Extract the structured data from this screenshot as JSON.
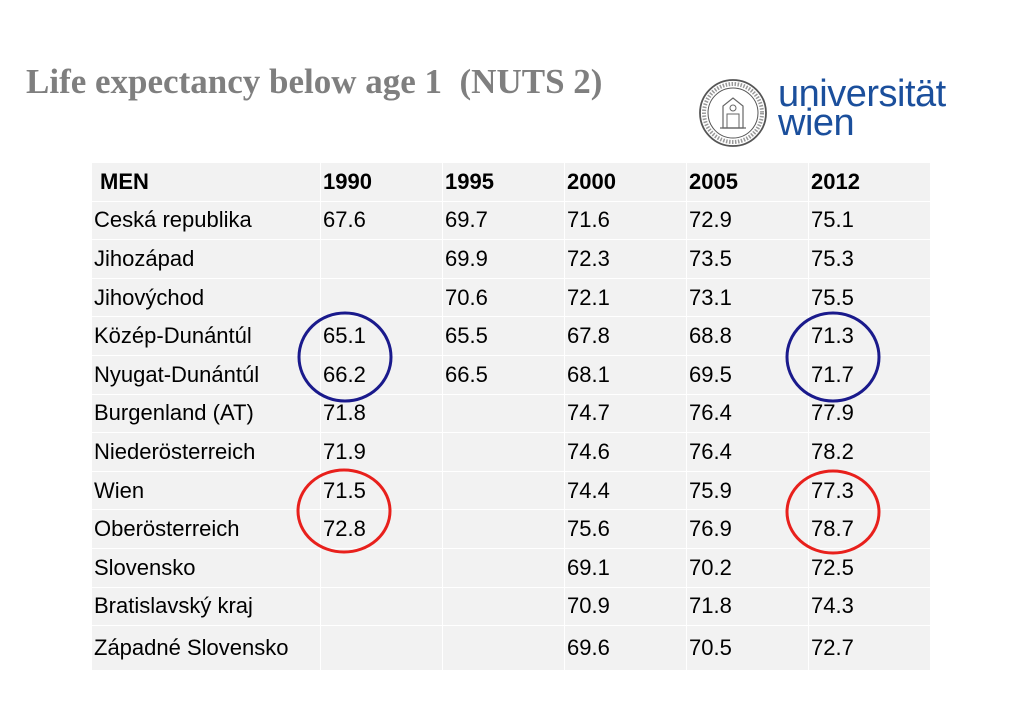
{
  "slide": {
    "title": "Life expectancy below age 1  (NUTS 2)"
  },
  "logo": {
    "line1": "universität",
    "line2": "wien",
    "color": "#1b4f9c"
  },
  "table": {
    "headers": [
      "MEN",
      "1990",
      "1995",
      "2000",
      "2005",
      "2012"
    ],
    "rows": [
      {
        "region": "Ceská republika",
        "values": [
          "67.6",
          "69.7",
          "71.6",
          "72.9",
          "75.1"
        ]
      },
      {
        "region": "Jihozápad",
        "values": [
          "",
          "69.9",
          "72.3",
          "73.5",
          "75.3"
        ]
      },
      {
        "region": "Jihovýchod",
        "values": [
          "",
          "70.6",
          "72.1",
          "73.1",
          "75.5"
        ]
      },
      {
        "region": "Közép-Dunántúl",
        "values": [
          "65.1",
          "65.5",
          "67.8",
          "68.8",
          "71.3"
        ]
      },
      {
        "region": "Nyugat-Dunántúl",
        "values": [
          "66.2",
          "66.5",
          "68.1",
          "69.5",
          "71.7"
        ]
      },
      {
        "region": "Burgenland (AT)",
        "values": [
          "71.8",
          "",
          "74.7",
          "76.4",
          "77.9"
        ]
      },
      {
        "region": "Niederösterreich",
        "values": [
          "71.9",
          "",
          "74.6",
          "76.4",
          "78.2"
        ]
      },
      {
        "region": "Wien",
        "values": [
          "71.5",
          "",
          "74.4",
          "75.9",
          "77.3"
        ]
      },
      {
        "region": "Oberösterreich",
        "values": [
          "72.8",
          "",
          "75.6",
          "76.9",
          "78.7"
        ]
      },
      {
        "region": "Slovensko",
        "values": [
          "",
          "",
          "69.1",
          "70.2",
          "72.5"
        ]
      },
      {
        "region": "Bratislavský kraj",
        "values": [
          "",
          "",
          "70.9",
          "71.8",
          "74.3"
        ]
      },
      {
        "region": "Západné Slovensko",
        "values": [
          "",
          "",
          "69.6",
          "70.5",
          "72.7"
        ]
      }
    ]
  },
  "annotations": {
    "blue_color": "#1a1a8c",
    "red_color": "#e8201c"
  }
}
